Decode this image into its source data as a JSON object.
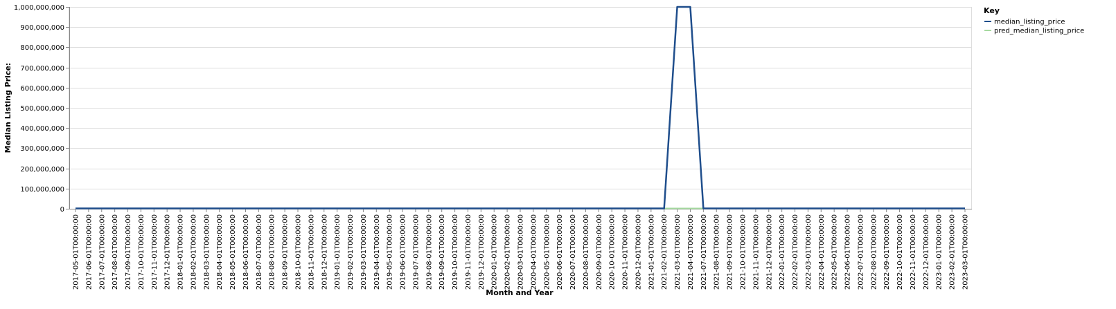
{
  "chart_data": {
    "type": "line",
    "title": "",
    "xlabel": "Month and Year",
    "ylabel": "Median Listing Price:",
    "ylim": [
      0,
      1000000000
    ],
    "yticks": [
      0,
      100000000,
      200000000,
      300000000,
      400000000,
      500000000,
      600000000,
      700000000,
      800000000,
      900000000,
      1000000000
    ],
    "ytick_labels": [
      "0",
      "100,000,000",
      "200,000,000",
      "300,000,000",
      "400,000,000",
      "500,000,000",
      "600,000,000",
      "700,000,000",
      "800,000,000",
      "900,000,000",
      "1,000,000,000"
    ],
    "grid": true,
    "legend": {
      "title": "Key",
      "position": "top-right"
    },
    "x": [
      "2017-05-01T00:00:00",
      "2017-06-01T00:00:00",
      "2017-07-01T00:00:00",
      "2017-08-01T00:00:00",
      "2017-09-01T00:00:00",
      "2017-10-01T00:00:00",
      "2017-11-01T00:00:00",
      "2017-12-01T00:00:00",
      "2018-01-01T00:00:00",
      "2018-02-01T00:00:00",
      "2018-03-01T00:00:00",
      "2018-04-01T00:00:00",
      "2018-05-01T00:00:00",
      "2018-06-01T00:00:00",
      "2018-07-01T00:00:00",
      "2018-08-01T00:00:00",
      "2018-09-01T00:00:00",
      "2018-10-01T00:00:00",
      "2018-11-01T00:00:00",
      "2018-12-01T00:00:00",
      "2019-01-01T00:00:00",
      "2019-02-01T00:00:00",
      "2019-03-01T00:00:00",
      "2019-04-01T00:00:00",
      "2019-05-01T00:00:00",
      "2019-06-01T00:00:00",
      "2019-07-01T00:00:00",
      "2019-08-01T00:00:00",
      "2019-09-01T00:00:00",
      "2019-10-01T00:00:00",
      "2019-11-01T00:00:00",
      "2019-12-01T00:00:00",
      "2020-01-01T00:00:00",
      "2020-02-01T00:00:00",
      "2020-03-01T00:00:00",
      "2020-04-01T00:00:00",
      "2020-05-01T00:00:00",
      "2020-06-01T00:00:00",
      "2020-07-01T00:00:00",
      "2020-08-01T00:00:00",
      "2020-09-01T00:00:00",
      "2020-10-01T00:00:00",
      "2020-11-01T00:00:00",
      "2020-12-01T00:00:00",
      "2021-01-01T00:00:00",
      "2021-02-01T00:00:00",
      "2021-03-01T00:00:00",
      "2021-04-01T00:00:00",
      "2021-07-01T00:00:00",
      "2021-08-01T00:00:00",
      "2021-09-01T00:00:00",
      "2021-10-01T00:00:00",
      "2021-11-01T00:00:00",
      "2021-12-01T00:00:00",
      "2022-01-01T00:00:00",
      "2022-02-01T00:00:00",
      "2022-03-01T00:00:00",
      "2022-04-01T00:00:00",
      "2022-05-01T00:00:00",
      "2022-06-01T00:00:00",
      "2022-07-01T00:00:00",
      "2022-08-01T00:00:00",
      "2022-09-01T00:00:00",
      "2022-10-01T00:00:00",
      "2022-11-01T00:00:00",
      "2022-12-01T00:00:00",
      "2023-01-01T00:00:00",
      "2023-02-01T00:00:00",
      "2023-03-01T00:00:00"
    ],
    "series": [
      {
        "name": "median_listing_price",
        "color": "#1f4e8c",
        "values": [
          1500000,
          1500000,
          1500000,
          1500000,
          1500000,
          1500000,
          1500000,
          1500000,
          1500000,
          1500000,
          1500000,
          1500000,
          1500000,
          1500000,
          1500000,
          1500000,
          1500000,
          1500000,
          1500000,
          1500000,
          1500000,
          1500000,
          1500000,
          1500000,
          1500000,
          1500000,
          1500000,
          1500000,
          1500000,
          1500000,
          1500000,
          1500000,
          1500000,
          1500000,
          1500000,
          1500000,
          1500000,
          1500000,
          1500000,
          1500000,
          1500000,
          1500000,
          1500000,
          1500000,
          1500000,
          1500000,
          1000000000,
          1000000000,
          1500000,
          1500000,
          1500000,
          1500000,
          1500000,
          1500000,
          1500000,
          1500000,
          1500000,
          1500000,
          1500000,
          1500000,
          1500000,
          1500000,
          1500000,
          1500000,
          1500000,
          1500000,
          1500000,
          1500000,
          1500000
        ]
      },
      {
        "name": "pred_median_listing_price",
        "color": "#a6d9a0",
        "values": [
          1500000,
          1500000,
          1500000,
          1500000,
          1500000,
          1500000,
          1500000,
          1500000,
          1500000,
          1500000,
          1500000,
          1500000,
          1500000,
          1500000,
          1500000,
          1500000,
          1500000,
          1500000,
          1500000,
          1500000,
          1500000,
          1500000,
          1500000,
          1500000,
          1500000,
          1500000,
          1500000,
          1500000,
          1500000,
          1500000,
          1500000,
          1500000,
          1500000,
          1500000,
          1500000,
          1500000,
          1500000,
          1500000,
          1500000,
          1500000,
          1500000,
          1500000,
          1500000,
          1500000,
          1500000,
          1500000,
          1500000,
          1500000,
          1500000,
          1500000,
          1500000,
          1500000,
          1500000,
          1500000,
          1500000,
          1500000,
          1500000,
          1500000,
          1500000,
          1500000,
          1500000,
          1500000,
          1500000,
          1500000,
          1500000,
          1500000,
          1500000,
          1500000,
          1500000
        ]
      }
    ]
  }
}
